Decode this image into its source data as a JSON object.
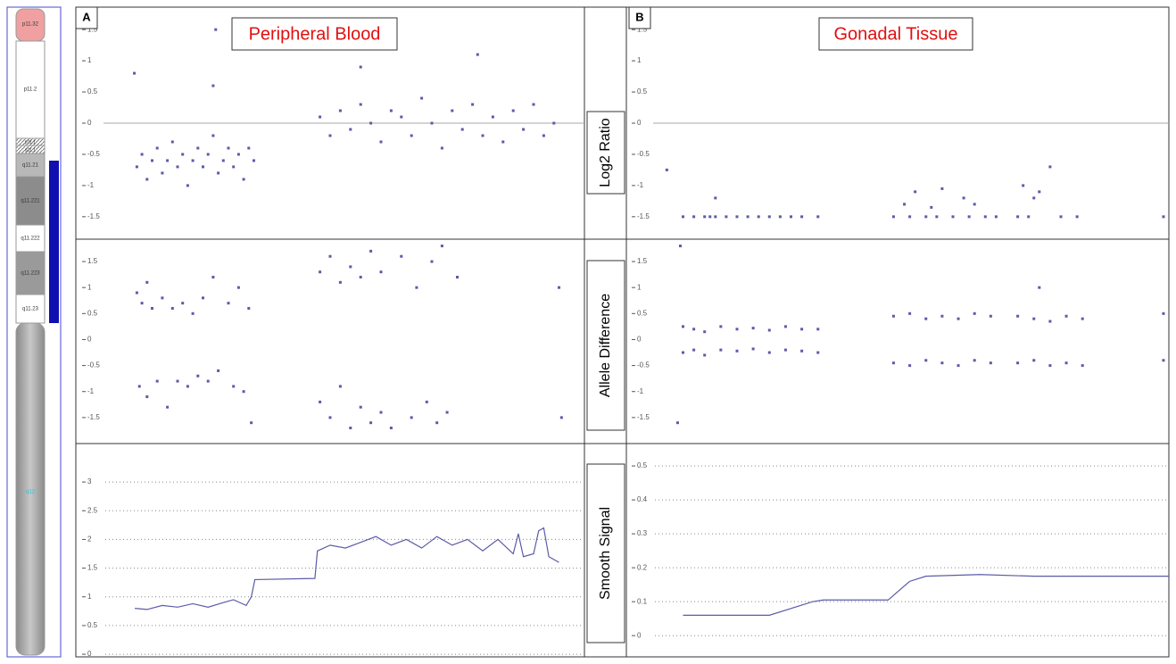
{
  "ideogram": {
    "bands": [
      "p11.32",
      "p11.2",
      "p11.1",
      "q11.1",
      "q11.21",
      "q11.221",
      "q11.222",
      "q11.223",
      "q11.23",
      "q12"
    ]
  },
  "row_labels": [
    "Log2 Ratio",
    "Allele Difference",
    "Smooth Signal"
  ],
  "chart_data": [
    {
      "type": "scatter",
      "panel_label": "A",
      "title": "Peripheral Blood",
      "color": "#5b5ba8",
      "xlim": [
        0,
        100
      ],
      "ylim": [
        -1.86,
        1.86
      ],
      "yticks": [
        1.5,
        1,
        0.5,
        0,
        -0.5,
        -1,
        -1.5
      ],
      "hline": 0,
      "x": [
        11.5,
        12,
        13,
        14,
        15,
        16,
        17,
        18,
        19,
        20,
        21,
        22,
        23,
        24,
        25,
        26,
        27,
        27,
        27.5,
        28,
        29,
        30,
        31,
        32,
        33,
        34,
        35,
        48,
        50,
        52,
        54,
        56,
        56,
        58,
        60,
        62,
        64,
        66,
        68,
        70,
        72,
        74,
        76,
        78,
        79,
        80,
        82,
        84,
        86,
        88,
        90,
        92,
        94
      ],
      "values": [
        0.8,
        -0.7,
        -0.5,
        -0.9,
        -0.6,
        -0.4,
        -0.8,
        -0.6,
        -0.3,
        -0.7,
        -0.5,
        -1.0,
        -0.6,
        -0.4,
        -0.7,
        -0.5,
        -0.2,
        0.6,
        1.5,
        -0.8,
        -0.6,
        -0.4,
        -0.7,
        -0.5,
        -0.9,
        -0.4,
        -0.6,
        0.1,
        -0.2,
        0.2,
        -0.1,
        0.3,
        0.9,
        0,
        -0.3,
        0.2,
        0.1,
        -0.2,
        0.4,
        0,
        -0.4,
        0.2,
        -0.1,
        0.3,
        1.1,
        -0.2,
        0.1,
        -0.3,
        0.2,
        -0.1,
        0.3,
        -0.2,
        0
      ]
    },
    {
      "type": "scatter",
      "panel_label": "B",
      "title": "Gonadal Tissue",
      "color": "#5b5ba8",
      "xlim": [
        0,
        100
      ],
      "ylim": [
        -1.86,
        1.86
      ],
      "yticks": [
        1.5,
        1,
        0.5,
        0,
        -0.5,
        -1,
        -1.5
      ],
      "hline": 0,
      "x": [
        7,
        10,
        12,
        14,
        15,
        16,
        16,
        18,
        20,
        22,
        24,
        26,
        28,
        30,
        32,
        35,
        49,
        51,
        52,
        53,
        55,
        56,
        57,
        58,
        60,
        62,
        63,
        64,
        66,
        68,
        72,
        73,
        74,
        75,
        76,
        78,
        80,
        83,
        99
      ],
      "values": [
        -0.75,
        -1.5,
        -1.5,
        -1.5,
        -1.5,
        -1.2,
        -1.5,
        -1.5,
        -1.5,
        -1.5,
        -1.5,
        -1.5,
        -1.5,
        -1.5,
        -1.5,
        -1.5,
        -1.5,
        -1.3,
        -1.5,
        -1.1,
        -1.5,
        -1.35,
        -1.5,
        -1.05,
        -1.5,
        -1.2,
        -1.5,
        -1.3,
        -1.5,
        -1.5,
        -1.5,
        -1.0,
        -1.5,
        -1.2,
        -1.1,
        -0.7,
        -1.5,
        -1.5,
        -1.5
      ]
    },
    {
      "type": "scatter",
      "color": "#5b5ba8",
      "xlim": [
        0,
        100
      ],
      "ylim": [
        -2.0,
        1.93
      ],
      "yticks": [
        1.5,
        1,
        0.5,
        0,
        -0.5,
        -1,
        -1.5
      ],
      "x": [
        12,
        13,
        14,
        15,
        17,
        19,
        21,
        23,
        25,
        27,
        30,
        32,
        34,
        12.5,
        14,
        16,
        18,
        20,
        22,
        24,
        26,
        28,
        31,
        33,
        34.5,
        48,
        50,
        52,
        54,
        56,
        58,
        60,
        64,
        67,
        70,
        72,
        75,
        48,
        50,
        52,
        54,
        56,
        58,
        60,
        62,
        66,
        69,
        71,
        73,
        95,
        95.5
      ],
      "values": [
        0.9,
        0.7,
        1.1,
        0.6,
        0.8,
        0.6,
        0.7,
        0.5,
        0.8,
        1.2,
        0.7,
        1.0,
        0.6,
        -0.9,
        -1.1,
        -0.8,
        -1.3,
        -0.8,
        -0.9,
        -0.7,
        -0.8,
        -0.6,
        -0.9,
        -1.0,
        -1.6,
        1.3,
        1.6,
        1.1,
        1.4,
        1.2,
        1.7,
        1.3,
        1.6,
        1.0,
        1.5,
        1.8,
        1.2,
        -1.2,
        -1.5,
        -0.9,
        -1.7,
        -1.3,
        -1.6,
        -1.4,
        -1.7,
        -1.5,
        -1.2,
        -1.6,
        -1.4,
        1.0,
        -1.5
      ]
    },
    {
      "type": "scatter",
      "color": "#5b5ba8",
      "xlim": [
        0,
        100
      ],
      "ylim": [
        -2.0,
        1.93
      ],
      "yticks": [
        1.5,
        1,
        0.5,
        0,
        -0.5,
        -1,
        -1.5
      ],
      "x": [
        10,
        12,
        14,
        17,
        20,
        23,
        26,
        29,
        32,
        35,
        10,
        12,
        14,
        17,
        20,
        23,
        26,
        29,
        32,
        35,
        9,
        9.5,
        49,
        52,
        55,
        58,
        61,
        64,
        67,
        49,
        52,
        55,
        58,
        61,
        64,
        67,
        72,
        75,
        78,
        81,
        84,
        72,
        75,
        78,
        81,
        84,
        76,
        99,
        99
      ],
      "values": [
        0.25,
        0.2,
        0.15,
        0.25,
        0.2,
        0.22,
        0.18,
        0.25,
        0.2,
        0.2,
        -0.25,
        -0.2,
        -0.3,
        -0.2,
        -0.22,
        -0.18,
        -0.25,
        -0.2,
        -0.22,
        -0.25,
        -1.6,
        1.8,
        0.45,
        0.5,
        0.4,
        0.45,
        0.4,
        0.5,
        0.45,
        -0.45,
        -0.5,
        -0.4,
        -0.45,
        -0.5,
        -0.4,
        -0.45,
        0.45,
        0.4,
        0.35,
        0.45,
        0.4,
        -0.45,
        -0.4,
        -0.5,
        -0.45,
        -0.5,
        1.0,
        0.5,
        -0.4
      ]
    },
    {
      "type": "line",
      "color": "#5b5ba8",
      "xlim": [
        0,
        100
      ],
      "ylim": [
        -0.03,
        3.67
      ],
      "grid": true,
      "yticks": [
        3,
        2.5,
        2,
        1.5,
        1,
        0.5,
        0
      ],
      "x": [
        11.6,
        14,
        17,
        20,
        23,
        26,
        29,
        31,
        33.5,
        34.5,
        35.2,
        47,
        47.5,
        50,
        53,
        56,
        59,
        62,
        65,
        68,
        71,
        74,
        77,
        80,
        83,
        86,
        87,
        88,
        90,
        91,
        92,
        93,
        95
      ],
      "values": [
        0.8,
        0.78,
        0.85,
        0.82,
        0.88,
        0.82,
        0.9,
        0.95,
        0.85,
        1.0,
        1.3,
        1.32,
        1.8,
        1.9,
        1.85,
        1.95,
        2.05,
        1.9,
        2.0,
        1.85,
        2.05,
        1.9,
        2.0,
        1.8,
        2.0,
        1.75,
        2.1,
        1.7,
        1.75,
        2.15,
        2.2,
        1.7,
        1.6
      ]
    },
    {
      "type": "line",
      "color": "#5b5ba8",
      "xlim": [
        0,
        100
      ],
      "ylim": [
        -0.06,
        0.566
      ],
      "grid": true,
      "yticks": [
        0.5,
        0.4,
        0.3,
        0.2,
        0.1,
        0
      ],
      "x": [
        10,
        26,
        30,
        34,
        36,
        48,
        52,
        55,
        65,
        75,
        100
      ],
      "values": [
        0.06,
        0.06,
        0.08,
        0.1,
        0.105,
        0.105,
        0.16,
        0.175,
        0.18,
        0.175,
        0.175
      ]
    }
  ]
}
